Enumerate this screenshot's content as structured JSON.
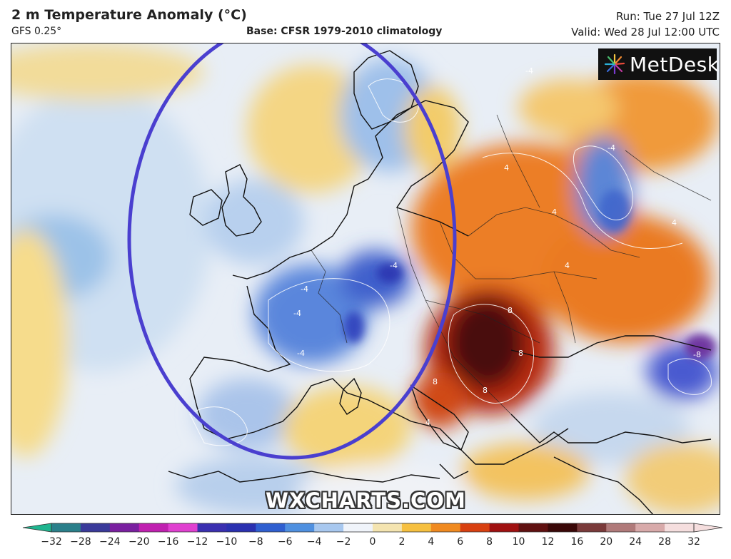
{
  "header": {
    "title": "2 m Temperature Anomaly (°C)",
    "model": "GFS 0.25°",
    "base": "Base: CFSR 1979-2010 climatology",
    "run": "Run: Tue 27 Jul 12Z",
    "valid": "Valid: Wed 28 Jul 12:00 UTC"
  },
  "brand": {
    "name": "MetDesk",
    "icon": "metdesk-burst-icon"
  },
  "watermark": "WXCHARTS.COM",
  "colorbar": {
    "ticks": [
      "−32",
      "−28",
      "−24",
      "−20",
      "−16",
      "−12",
      "−10",
      "−8",
      "−6",
      "−4",
      "−2",
      "0",
      "2",
      "4",
      "6",
      "8",
      "10",
      "12",
      "16",
      "20",
      "24",
      "28",
      "32"
    ],
    "colors": [
      "#1fb58f",
      "#2a7f8a",
      "#3a3a9a",
      "#7a1fa0",
      "#c020b0",
      "#e040d0",
      "#3a2fb0",
      "#2a30b0",
      "#2f5fd0",
      "#4f90e0",
      "#a8c8ef",
      "#f0f4fa",
      "#f4e4b0",
      "#f6c040",
      "#f08a20",
      "#d84010",
      "#a01010",
      "#601010",
      "#3a0808",
      "#7a3a3a",
      "#b07a7a",
      "#d8aaaa",
      "#f5dede"
    ]
  },
  "map_labels": [
    "-4",
    "-4",
    "-4",
    "-4",
    "-4",
    "4",
    "4",
    "4",
    "4",
    "8",
    "8",
    "8",
    "-8",
    "8",
    "4",
    "-4"
  ],
  "annotation": {
    "shape": "ellipse",
    "color": "#4a3fcf"
  }
}
